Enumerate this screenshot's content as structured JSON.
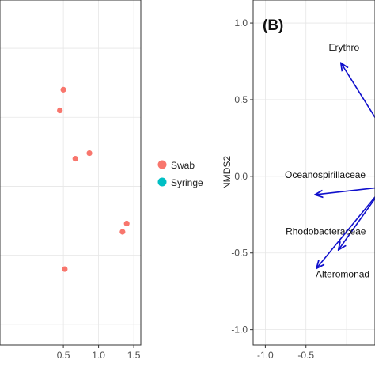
{
  "chart_data": [
    {
      "type": "scatter",
      "panel_label": "",
      "xlabel": "",
      "ylabel": "",
      "xlim": [
        -0.4,
        1.6
      ],
      "x_ticks": [
        0.5,
        1.0,
        1.5
      ],
      "x_tick_labels": [
        "0.5",
        "1.0",
        "1.5"
      ],
      "grid": true,
      "legend_position": "right",
      "series": [
        {
          "name": "Swab",
          "color": "#F8766D",
          "points": [
            {
              "x": 0.5,
              "y": 0.7
            },
            {
              "x": 0.45,
              "y": 0.55
            },
            {
              "x": 0.67,
              "y": 0.2
            },
            {
              "x": 0.87,
              "y": 0.24
            },
            {
              "x": 1.34,
              "y": -0.33
            },
            {
              "x": 1.4,
              "y": -0.27
            },
            {
              "x": 0.52,
              "y": -0.6
            }
          ]
        },
        {
          "name": "Syringe",
          "color": "#00BFC4",
          "points": []
        }
      ]
    },
    {
      "type": "biplot-vectors",
      "panel_label": "(B)",
      "xlabel": "",
      "ylabel": "NMDS2",
      "xlim": [
        -1.15,
        0.35
      ],
      "ylim": [
        -1.1,
        1.15
      ],
      "x_ticks": [
        -1.0,
        -0.5
      ],
      "x_tick_labels": [
        "-1.0",
        "-0.5"
      ],
      "y_ticks": [
        1.0,
        0.5,
        0.0,
        -0.5,
        -1.0
      ],
      "y_tick_labels": [
        "1.0",
        "0.5",
        "0.0",
        "-0.5",
        "-1.0"
      ],
      "grid": true,
      "arrow_color": "#1010CC",
      "vectors": [
        {
          "label": "Erythro",
          "x0": 0.45,
          "y0": 0.3,
          "x1": -0.07,
          "y1": 0.74,
          "label_x": -0.22,
          "label_y": 0.82
        },
        {
          "label": "Oceanospirillaceae",
          "x0": 0.45,
          "y0": -0.07,
          "x1": -0.39,
          "y1": -0.12,
          "label_x": -0.76,
          "label_y": -0.01
        },
        {
          "label": "Rhodobacteraceae",
          "x0": 0.45,
          "y0": -0.07,
          "x1": -0.1,
          "y1": -0.48,
          "label_x": -0.75,
          "label_y": -0.38
        },
        {
          "label": "Alteromonad",
          "x0": 0.45,
          "y0": -0.07,
          "x1": -0.37,
          "y1": -0.6,
          "label_x": -0.38,
          "label_y": -0.66
        }
      ]
    }
  ]
}
